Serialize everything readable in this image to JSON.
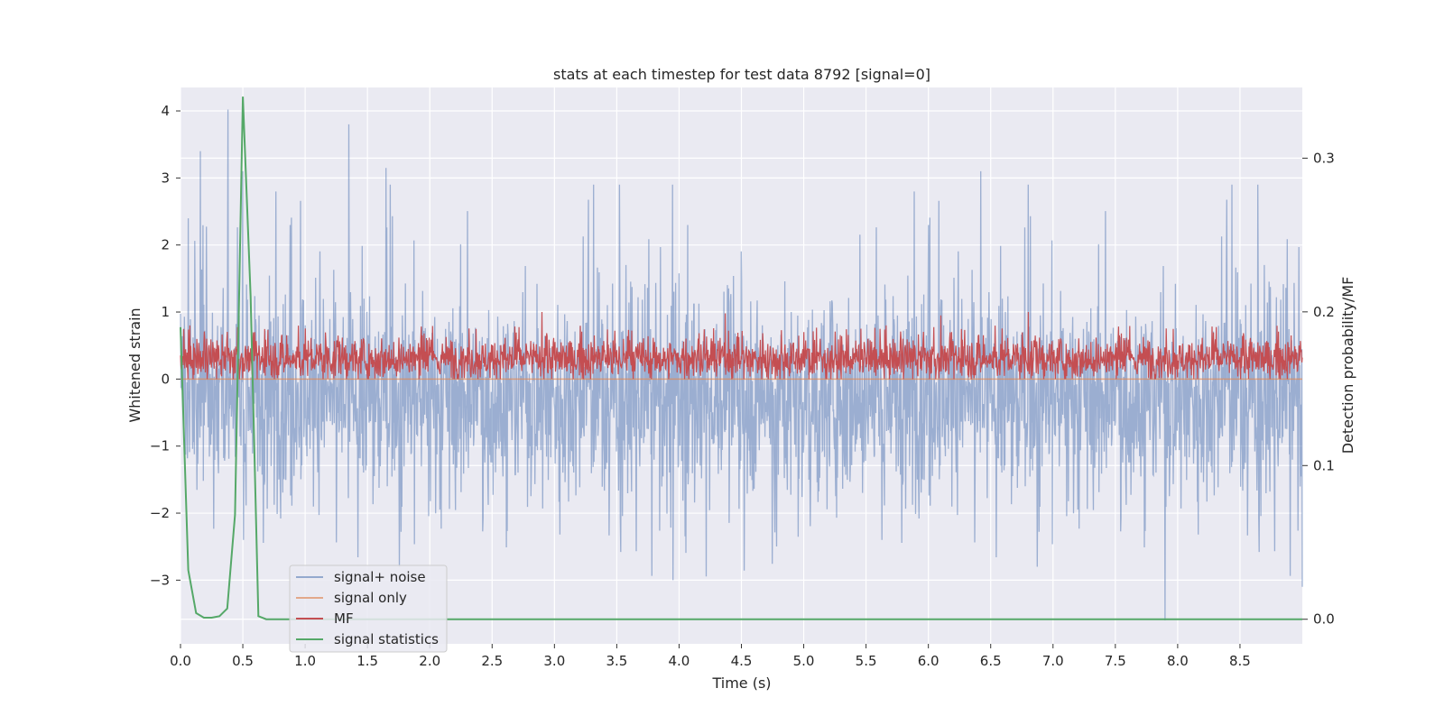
{
  "chart_data": {
    "type": "line",
    "title": "stats at each timestep for test data 8792 [signal=0]",
    "xlabel": "Time (s)",
    "ylabel_left": "Whitened strain",
    "ylabel_right": "Detection probability/MF",
    "xlim": [
      0.0,
      9.0
    ],
    "ylim_left": [
      -3.95,
      4.35
    ],
    "ylim_right": [
      -0.016,
      0.346
    ],
    "x_ticks": [
      "0.0",
      "0.5",
      "1.0",
      "1.5",
      "2.0",
      "2.5",
      "3.0",
      "3.5",
      "4.0",
      "4.5",
      "5.0",
      "5.5",
      "6.0",
      "6.5",
      "7.0",
      "7.5",
      "8.0",
      "8.5"
    ],
    "x_tick_values": [
      0.0,
      0.5,
      1.0,
      1.5,
      2.0,
      2.5,
      3.0,
      3.5,
      4.0,
      4.5,
      5.0,
      5.5,
      6.0,
      6.5,
      7.0,
      7.5,
      8.0,
      8.5
    ],
    "y_left_ticks": [
      "−3",
      "−2",
      "−1",
      "0",
      "1",
      "2",
      "3",
      "4"
    ],
    "y_left_tick_values": [
      -3,
      -2,
      -1,
      0,
      1,
      2,
      3,
      4
    ],
    "y_right_ticks": [
      "0.0",
      "0.1",
      "0.2",
      "0.3"
    ],
    "y_right_tick_values": [
      0.0,
      0.1,
      0.2,
      0.3
    ],
    "grid": true,
    "legend_position": "lower-left",
    "colors": {
      "background": "#eaeaf2",
      "grid": "#ffffff",
      "signal_noise": "#4c72b0",
      "signal_only": "#dd8452",
      "mf": "#c44e52",
      "signal_statistics": "#55a868"
    },
    "series": [
      {
        "name": "signal+ noise",
        "axis": "left",
        "description_range": [
          -3.6,
          4.0
        ],
        "peaks": [
          [
            0.16,
            3.4
          ],
          [
            0.38,
            4.02
          ],
          [
            0.5,
            3.1
          ],
          [
            1.35,
            3.8
          ],
          [
            1.65,
            3.15
          ],
          [
            6.42,
            3.1
          ],
          [
            7.9,
            -3.6
          ],
          [
            3.95,
            -3.0
          ],
          [
            9.0,
            -3.1
          ]
        ]
      },
      {
        "name": "signal only",
        "axis": "left",
        "x": [
          0.0,
          9.0
        ],
        "y": [
          0.0,
          0.0
        ]
      },
      {
        "name": "MF",
        "axis": "left",
        "description_range": [
          0.0,
          1.0
        ],
        "peaks": [
          [
            2.9,
            1.0
          ],
          [
            4.37,
            0.98
          ],
          [
            6.1,
            0.95
          ],
          [
            6.8,
            1.0
          ]
        ]
      },
      {
        "name": "signal statistics",
        "axis": "right",
        "x": [
          0.0,
          0.0625,
          0.125,
          0.1875,
          0.25,
          0.3125,
          0.375,
          0.4375,
          0.5,
          0.5625,
          0.625,
          0.6875,
          0.75,
          1.0,
          2.0,
          3.0,
          4.0,
          5.0,
          6.0,
          7.0,
          8.0,
          9.0
        ],
        "y": [
          0.19,
          0.032,
          0.004,
          0.001,
          0.001,
          0.002,
          0.007,
          0.068,
          0.34,
          0.21,
          0.002,
          0.0,
          0.0,
          0.0,
          0.0,
          0.0,
          0.0,
          0.0,
          0.0,
          0.0,
          0.0,
          0.0
        ]
      }
    ]
  }
}
